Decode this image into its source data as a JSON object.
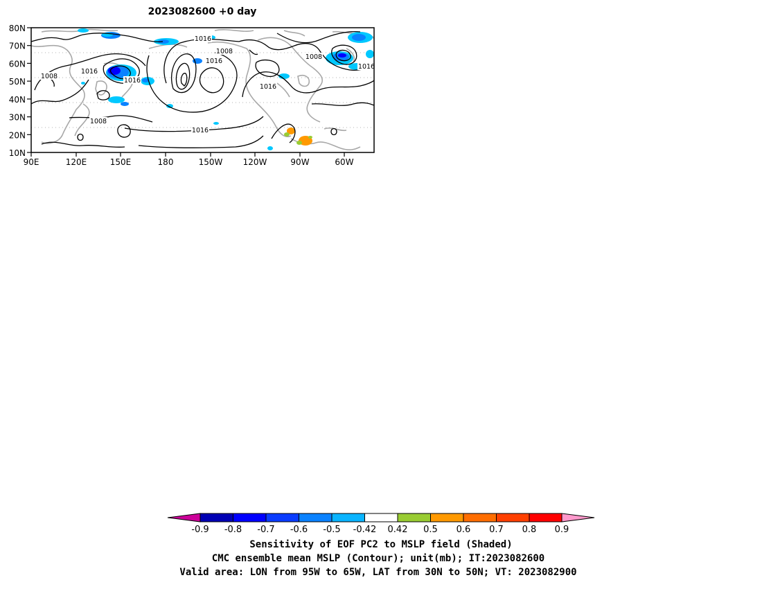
{
  "title": "2023082600  +0 day",
  "map": {
    "lat_labels": [
      "80N",
      "70N",
      "60N",
      "50N",
      "40N",
      "30N",
      "20N",
      "10N"
    ],
    "lon_labels": [
      "90E",
      "120E",
      "150E",
      "180",
      "150W",
      "120W",
      "90W",
      "60W"
    ],
    "contour_labels": [
      "1016",
      "1008",
      "1016",
      "1008",
      "1016",
      "1008",
      "1016",
      "1016",
      "1016",
      "1016",
      "1008"
    ],
    "colors": {
      "contour": "#000000",
      "coastline": "#a8a8a8",
      "neg_shade_light": "#00c8ff",
      "neg_shade_mid": "#0a82ff",
      "neg_shade_dark": "#0000ff",
      "pos_shade_orange": "#ff9900",
      "pos_shade_green": "#99cc33"
    }
  },
  "colorbar": {
    "colors": [
      "#cc0099",
      "#0000b4",
      "#0000ff",
      "#0a3cff",
      "#0a82ff",
      "#0ab4ff",
      "#00c8ff",
      "#ffffff",
      "#99cc33",
      "#ff9900",
      "#ff6e00",
      "#ff4000",
      "#ff0000",
      "#ff99cc"
    ],
    "tick_labels": [
      "-0.9",
      "-0.8",
      "-0.7",
      "-0.6",
      "-0.5",
      "-0.42",
      "0.42",
      "0.5",
      "0.6",
      "0.7",
      "0.8",
      "0.9"
    ]
  },
  "caption": {
    "line1": "Sensitivity of EOF PC2 to MSLP field (Shaded)",
    "line2": "CMC ensemble mean MSLP (Contour); unit(mb); IT:2023082600",
    "line3": "Valid area: LON from 95W to 65W, LAT from 30N to 50N; VT: 2023082900"
  }
}
